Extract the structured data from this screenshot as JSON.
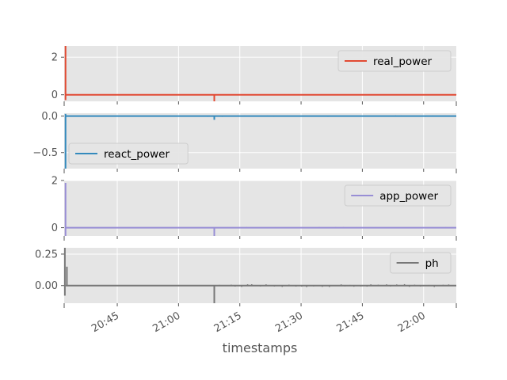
{
  "chart_data": {
    "type": "line",
    "style": "ggplot",
    "xlabel": "timestamps",
    "x_range": [
      "20:32",
      "22:08"
    ],
    "x_ticks": [
      {
        "time": "20:45",
        "label": "20:45"
      },
      {
        "time": "21:00",
        "label": "21:00"
      },
      {
        "time": "21:15",
        "label": "21:15"
      },
      {
        "time": "21:30",
        "label": "21:30"
      },
      {
        "time": "21:45",
        "label": "21:45"
      },
      {
        "time": "22:00",
        "label": "22:00"
      }
    ],
    "grid": true,
    "sharex": true,
    "panels": [
      {
        "name": "real_power",
        "color": "#E24A33",
        "legend": "upper-right",
        "ylim": [
          -0.35,
          2.6
        ],
        "yticks": [
          {
            "value": 2,
            "label": "2"
          },
          {
            "value": 0,
            "label": "0"
          }
        ],
        "baseline": 0,
        "spikes": [
          {
            "time": "20:32:20",
            "low": -0.28,
            "high": 2.6
          },
          {
            "time": "21:08:45",
            "low": -0.35,
            "high": 0.0
          }
        ],
        "noise_after": "21:10",
        "noise_amp": 0.03
      },
      {
        "name": "react_power",
        "color": "#348ABD",
        "legend": "lower-left",
        "ylim": [
          -0.72,
          0.04
        ],
        "yticks": [
          {
            "value": 0.0,
            "label": "0.0"
          },
          {
            "value": -0.5,
            "label": "−0.5"
          }
        ],
        "baseline": 0,
        "spikes": [
          {
            "time": "20:32:20",
            "low": -0.72,
            "high": 0.03
          },
          {
            "time": "21:08:45",
            "low": -0.05,
            "high": 0.0
          }
        ],
        "noise_after": "20:45",
        "noise_amp": 0.01
      },
      {
        "name": "app_power",
        "color": "#988ED5",
        "legend": "upper-right",
        "ylim": [
          -0.35,
          2.0
        ],
        "yticks": [
          {
            "value": 2,
            "label": "2"
          },
          {
            "value": 0,
            "label": "0"
          }
        ],
        "baseline": 0,
        "spikes": [
          {
            "time": "20:32:20",
            "low": -0.35,
            "high": 1.9
          },
          {
            "time": "21:08:45",
            "low": -0.35,
            "high": 0.0
          }
        ],
        "noise_after": "21:10",
        "noise_amp": 0.03
      },
      {
        "name": "ph",
        "color": "#777777",
        "legend": "upper-right",
        "ylim": [
          -0.14,
          0.3
        ],
        "yticks": [
          {
            "value": 0.25,
            "label": "0.25"
          },
          {
            "value": 0.0,
            "label": "0.00"
          }
        ],
        "baseline": 0,
        "spikes": [
          {
            "time": "20:32:10",
            "low": -0.08,
            "high": 0.3
          },
          {
            "time": "20:32:40",
            "low": 0.0,
            "high": 0.15
          },
          {
            "time": "21:08:45",
            "low": -0.14,
            "high": 0.0
          }
        ],
        "noise_after": "21:10",
        "noise_amp": 0.012
      }
    ]
  }
}
